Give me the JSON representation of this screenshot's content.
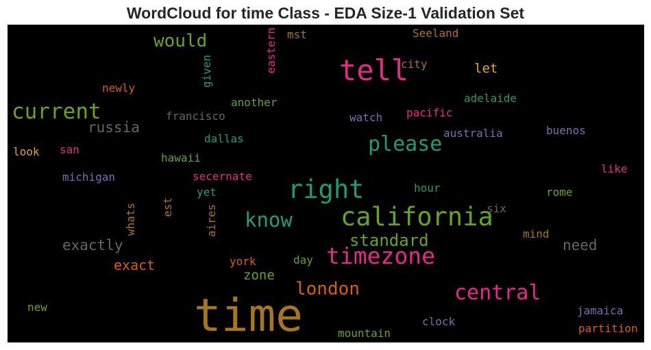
{
  "title": "WordCloud for time Class - EDA Size-1 Validation Set",
  "colors": {
    "background": "#000000",
    "green": "#66a61e",
    "teal": "#1b9e77",
    "pink": "#e7298a",
    "orange": "#d95f02",
    "mustard": "#a6761d",
    "gold": "#e6ab02",
    "gray": "#666666",
    "purple": "#7570b3"
  },
  "words": [
    {
      "text": "time",
      "color": "mustard"
    },
    {
      "text": "tell",
      "color": "pink"
    },
    {
      "text": "california",
      "color": "green"
    },
    {
      "text": "right",
      "color": "teal"
    },
    {
      "text": "timezone",
      "color": "pink"
    },
    {
      "text": "current",
      "color": "green"
    },
    {
      "text": "please",
      "color": "teal"
    },
    {
      "text": "central",
      "color": "pink"
    },
    {
      "text": "know",
      "color": "teal"
    },
    {
      "text": "london",
      "color": "orange"
    },
    {
      "text": "standard",
      "color": "green"
    },
    {
      "text": "would",
      "color": "green"
    },
    {
      "text": "russia",
      "color": "gray"
    },
    {
      "text": "exactly",
      "color": "gray"
    },
    {
      "text": "exact",
      "color": "orange"
    },
    {
      "text": "need",
      "color": "gray"
    },
    {
      "text": "zone",
      "color": "green"
    },
    {
      "text": "let",
      "color": "gold"
    },
    {
      "text": "francisco",
      "color": "gray"
    },
    {
      "text": "another",
      "color": "green"
    },
    {
      "text": "adelaide",
      "color": "teal"
    },
    {
      "text": "pacific",
      "color": "pink"
    },
    {
      "text": "watch",
      "color": "purple"
    },
    {
      "text": "australia",
      "color": "purple"
    },
    {
      "text": "buenos",
      "color": "purple"
    },
    {
      "text": "newly",
      "color": "orange"
    },
    {
      "text": "city",
      "color": "mustard"
    },
    {
      "text": "Seeland",
      "color": "mustard"
    },
    {
      "text": "mst",
      "color": "mustard"
    },
    {
      "text": "dallas",
      "color": "teal"
    },
    {
      "text": "hawaii",
      "color": "green"
    },
    {
      "text": "look",
      "color": "gold"
    },
    {
      "text": "san",
      "color": "pink"
    },
    {
      "text": "michigan",
      "color": "purple"
    },
    {
      "text": "secernate",
      "color": "pink"
    },
    {
      "text": "like",
      "color": "pink"
    },
    {
      "text": "hour",
      "color": "teal"
    },
    {
      "text": "rome",
      "color": "green"
    },
    {
      "text": "yet",
      "color": "teal"
    },
    {
      "text": "six",
      "color": "gray"
    },
    {
      "text": "mind",
      "color": "mustard"
    },
    {
      "text": "york",
      "color": "orange"
    },
    {
      "text": "day",
      "color": "green"
    },
    {
      "text": "new",
      "color": "green"
    },
    {
      "text": "clock",
      "color": "purple"
    },
    {
      "text": "jamaica",
      "color": "purple"
    },
    {
      "text": "partition",
      "color": "orange"
    },
    {
      "text": "mountain",
      "color": "green"
    },
    {
      "text": "eastern",
      "color": "pink"
    },
    {
      "text": "given",
      "color": "teal"
    },
    {
      "text": "whats",
      "color": "mustard"
    },
    {
      "text": "est",
      "color": "mustard"
    },
    {
      "text": "aires",
      "color": "mustard"
    }
  ]
}
